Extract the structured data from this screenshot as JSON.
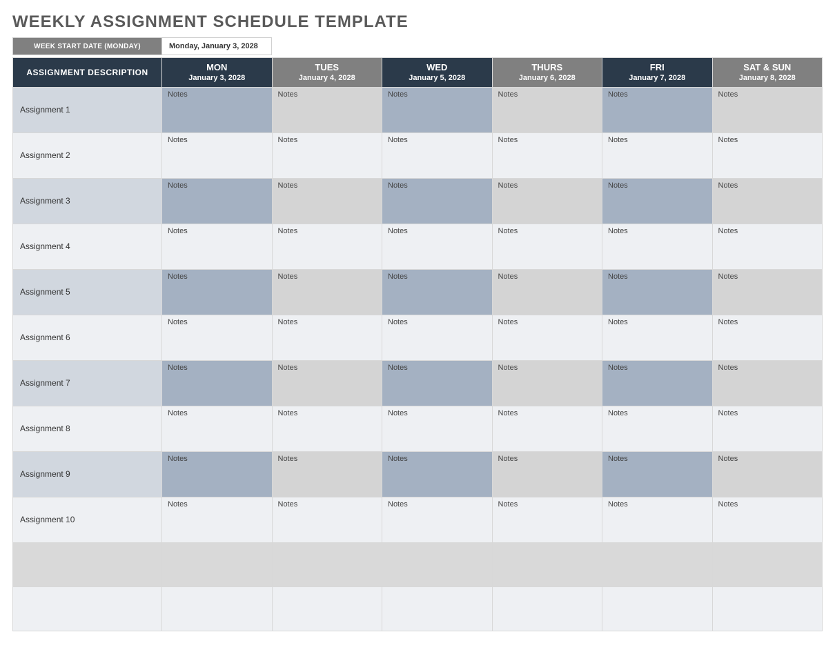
{
  "title": "WEEKLY ASSIGNMENT SCHEDULE TEMPLATE",
  "start_label": "WEEK START DATE (MONDAY)",
  "start_value": "Monday, January 3, 2028",
  "description_header": "ASSIGNMENT DESCRIPTION",
  "day_head_bg_dark": "#2b3a4a",
  "day_head_bg_light": "#808080",
  "days": [
    {
      "name": "MON",
      "date": "January 3, 2028",
      "bg": "#2b3a4a"
    },
    {
      "name": "TUES",
      "date": "January 4, 2028",
      "bg": "#808080"
    },
    {
      "name": "WED",
      "date": "January 5, 2028",
      "bg": "#2b3a4a"
    },
    {
      "name": "THURS",
      "date": "January 6, 2028",
      "bg": "#808080"
    },
    {
      "name": "FRI",
      "date": "January 7, 2028",
      "bg": "#2b3a4a"
    },
    {
      "name": "SAT & SUN",
      "date": "January 8, 2028",
      "bg": "#808080"
    }
  ],
  "note_label": "Notes",
  "row_colors": {
    "odd": {
      "desc": "#d1d7df",
      "c1": "#a4b1c2",
      "c2": "#d4d4d4",
      "c3": "#a4b1c2",
      "c4": "#d4d4d4",
      "c5": "#a4b1c2",
      "c6": "#d4d4d4"
    },
    "even": {
      "desc": "#eef0f3",
      "c1": "#eef0f3",
      "c2": "#eef0f3",
      "c3": "#eef0f3",
      "c4": "#eef0f3",
      "c5": "#eef0f3",
      "c6": "#eef0f3"
    }
  },
  "empty_row_colors": {
    "odd": {
      "desc": "#d9d9d9",
      "c1": "#d9d9d9",
      "c2": "#d9d9d9",
      "c3": "#d9d9d9",
      "c4": "#d9d9d9",
      "c5": "#d9d9d9",
      "c6": "#d9d9d9"
    },
    "even": {
      "desc": "#eef0f3",
      "c1": "#eef0f3",
      "c2": "#eef0f3",
      "c3": "#eef0f3",
      "c4": "#eef0f3",
      "c5": "#eef0f3",
      "c6": "#eef0f3"
    }
  },
  "assignments": [
    "Assignment 1",
    "Assignment 2",
    "Assignment 3",
    "Assignment 4",
    "Assignment 5",
    "Assignment 6",
    "Assignment 7",
    "Assignment 8",
    "Assignment 9",
    "Assignment 10"
  ],
  "trailing_empty_rows": 2
}
